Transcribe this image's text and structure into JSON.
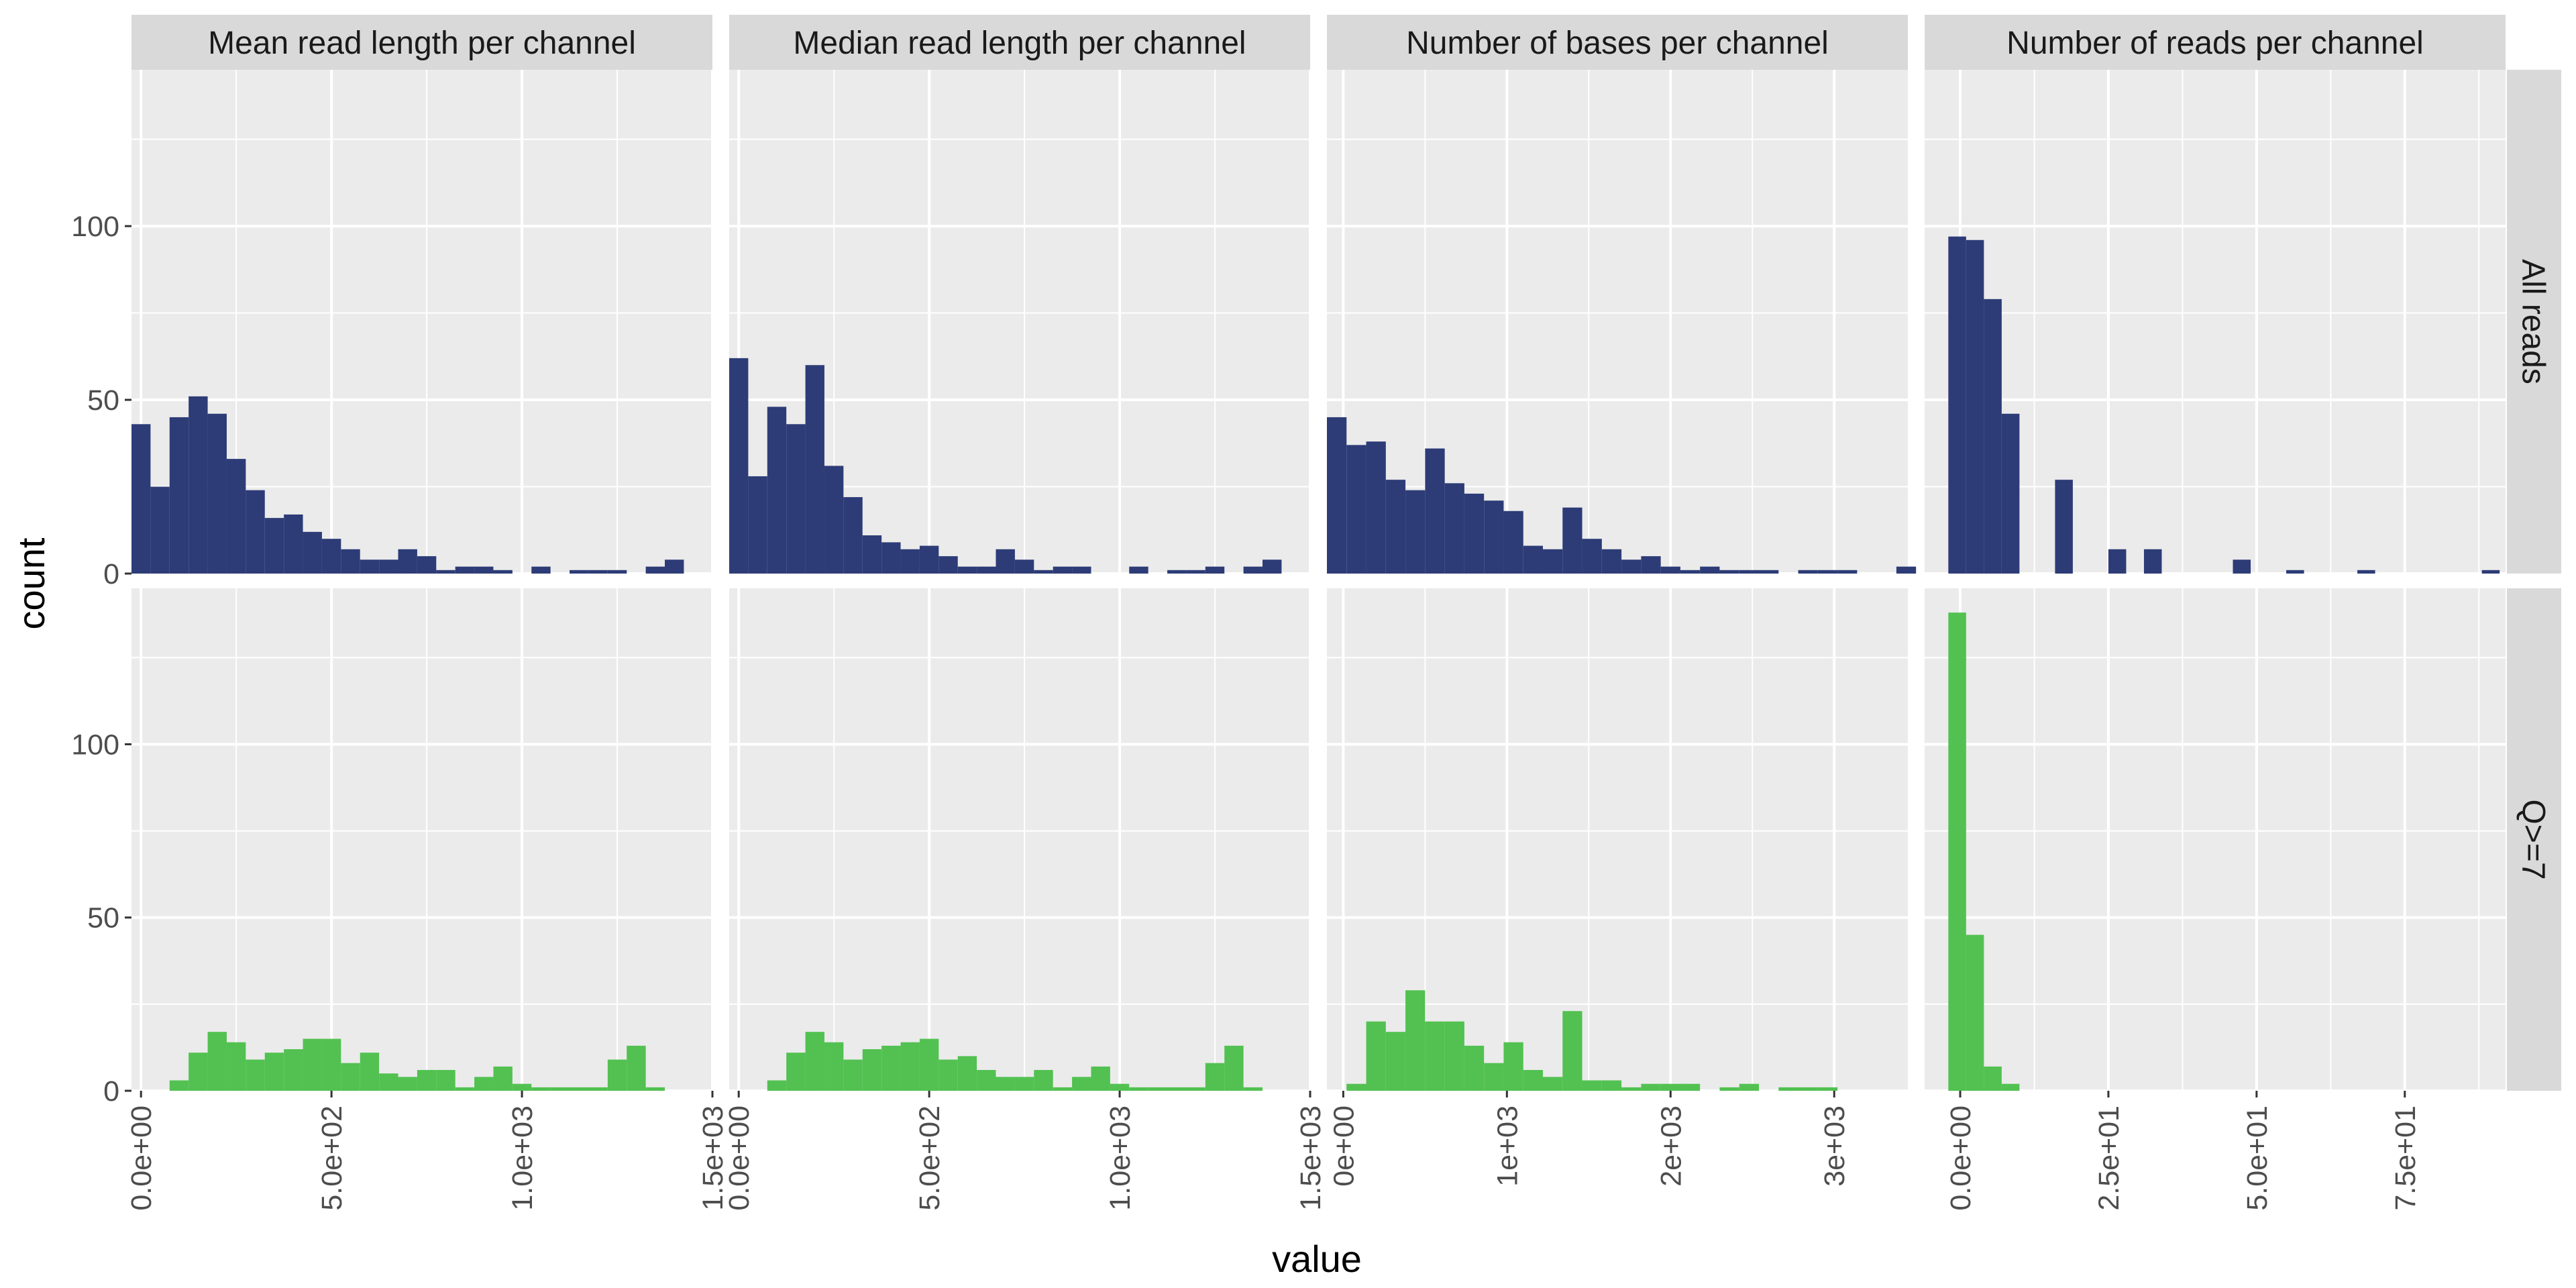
{
  "chart_data": {
    "type": "bar",
    "subtype": "faceted-histogram",
    "xlabel": "value",
    "ylabel": "count",
    "ylim": [
      0,
      145
    ],
    "y_ticks": [
      0,
      50,
      100
    ],
    "grid": true,
    "legend": "none",
    "colors": {
      "All reads": "#2d3c77",
      "Q>=7": "#52c151"
    },
    "row_facets": [
      "All reads",
      "Q>=7"
    ],
    "col_facets": [
      {
        "title": "Mean read length per channel",
        "xlim": [
          -25,
          1500
        ],
        "x_ticks": [
          0,
          500,
          1000,
          1500
        ],
        "x_tick_labels": [
          "0.0e+00",
          "5.0e+02",
          "1.0e+03",
          "1.5e+03"
        ],
        "bin_start": -25,
        "bin_width": 50,
        "series": [
          {
            "name": "All reads",
            "values": [
              43,
              25,
              45,
              51,
              46,
              33,
              24,
              16,
              17,
              12,
              10,
              7,
              4,
              4,
              7,
              5,
              1,
              2,
              2,
              1,
              0,
              2,
              0,
              1,
              1,
              1,
              0,
              2,
              4
            ]
          },
          {
            "name": "Q>=7",
            "values": [
              0,
              0,
              3,
              11,
              17,
              14,
              9,
              11,
              12,
              15,
              15,
              8,
              11,
              5,
              4,
              6,
              6,
              1,
              4,
              7,
              2,
              1,
              1,
              1,
              1,
              9,
              13,
              1,
              0
            ]
          }
        ]
      },
      {
        "title": "Median read length per channel",
        "xlim": [
          -25,
          1500
        ],
        "x_ticks": [
          0,
          500,
          1000,
          1500
        ],
        "x_tick_labels": [
          "0.0e+00",
          "5.0e+02",
          "1.0e+03",
          "1.5e+03"
        ],
        "bin_start": -25,
        "bin_width": 50,
        "series": [
          {
            "name": "All reads",
            "values": [
              62,
              28,
              48,
              43,
              60,
              31,
              22,
              11,
              9,
              7,
              8,
              5,
              2,
              2,
              7,
              4,
              1,
              2,
              2,
              0,
              0,
              2,
              0,
              1,
              1,
              2,
              0,
              2,
              4
            ]
          },
          {
            "name": "Q>=7",
            "values": [
              0,
              0,
              3,
              11,
              17,
              14,
              9,
              12,
              13,
              14,
              15,
              9,
              10,
              6,
              4,
              4,
              6,
              1,
              4,
              7,
              2,
              1,
              1,
              1,
              1,
              8,
              13,
              1,
              0
            ]
          }
        ]
      },
      {
        "title": "Number of bases per channel",
        "xlim": [
          -100,
          3450
        ],
        "x_ticks": [
          0,
          1000,
          2000,
          3000
        ],
        "x_tick_labels": [
          "0e+00",
          "1e+03",
          "2e+03",
          "3e+03"
        ],
        "bin_start": -100,
        "bin_width": 120,
        "series": [
          {
            "name": "All reads",
            "values": [
              45,
              37,
              38,
              27,
              24,
              36,
              26,
              23,
              21,
              18,
              8,
              7,
              19,
              10,
              7,
              4,
              5,
              2,
              1,
              2,
              1,
              1,
              1,
              0,
              1,
              1,
              1,
              0,
              0,
              2
            ]
          },
          {
            "name": "Q>=7",
            "values": [
              0,
              2,
              20,
              17,
              29,
              20,
              20,
              13,
              8,
              14,
              6,
              4,
              23,
              3,
              3,
              1,
              2,
              2,
              2,
              0,
              1,
              2,
              0,
              1,
              1,
              1,
              0,
              0,
              0,
              0
            ]
          }
        ]
      },
      {
        "title": "Number of reads per channel",
        "xlim": [
          -6,
          92
        ],
        "x_ticks": [
          0,
          25,
          50,
          75
        ],
        "x_tick_labels": [
          "0.0e+00",
          "2.5e+01",
          "5.0e+01",
          "7.5e+01"
        ],
        "bin_start": -2,
        "bin_width": 3,
        "series": [
          {
            "name": "All reads",
            "values": [
              97,
              96,
              79,
              46,
              0,
              0,
              27,
              0,
              0,
              7,
              0,
              7,
              0,
              0,
              0,
              0,
              4,
              0,
              0,
              1,
              0,
              0,
              0,
              1,
              0,
              0,
              0,
              0,
              0,
              0,
              1
            ]
          },
          {
            "name": "Q>=7",
            "values": [
              138,
              45,
              7,
              2,
              0,
              0,
              0,
              0,
              0,
              0,
              0,
              0,
              0,
              0,
              0,
              0,
              0,
              0,
              0,
              0,
              0,
              0,
              0,
              0,
              0,
              0,
              0,
              0,
              0,
              0,
              0
            ]
          }
        ]
      }
    ]
  }
}
